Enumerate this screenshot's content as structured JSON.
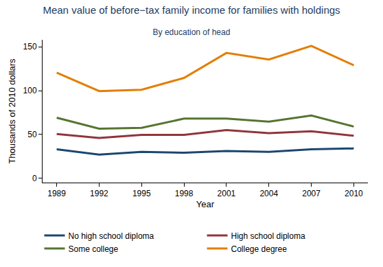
{
  "chart_data": {
    "type": "line",
    "title": "Mean value of before−tax family income for families with holdings",
    "subtitle": "By education of head",
    "x_label": "Year",
    "y_label": "Thousands of 2010 dollars",
    "x": [
      1989,
      1992,
      1995,
      1998,
      2001,
      2004,
      2007,
      2010
    ],
    "series": [
      {
        "name": "No high school diploma",
        "color": "#1a476f",
        "values": [
          33,
          27,
          30,
          29,
          31,
          30,
          33,
          34
        ]
      },
      {
        "name": "High school diploma",
        "color": "#90353b",
        "values": [
          50.5,
          46,
          49.5,
          49.5,
          55,
          51.5,
          53.5,
          48.5
        ]
      },
      {
        "name": "Some college",
        "color": "#55752f",
        "values": [
          69,
          56.5,
          57.5,
          68,
          68,
          64.5,
          71.5,
          59
        ]
      },
      {
        "name": "College degree",
        "color": "#e37e00",
        "values": [
          120.5,
          99.5,
          101,
          114.5,
          143,
          135.5,
          151,
          129
        ]
      }
    ],
    "xlim": [
      1988,
      2011
    ],
    "xticks": [
      1989,
      1992,
      1995,
      1998,
      2001,
      2004,
      2007,
      2010
    ],
    "ylim": [
      -5,
      158
    ],
    "yticks": [
      0,
      50,
      100,
      150
    ],
    "grid": false,
    "legend": "bottom"
  }
}
